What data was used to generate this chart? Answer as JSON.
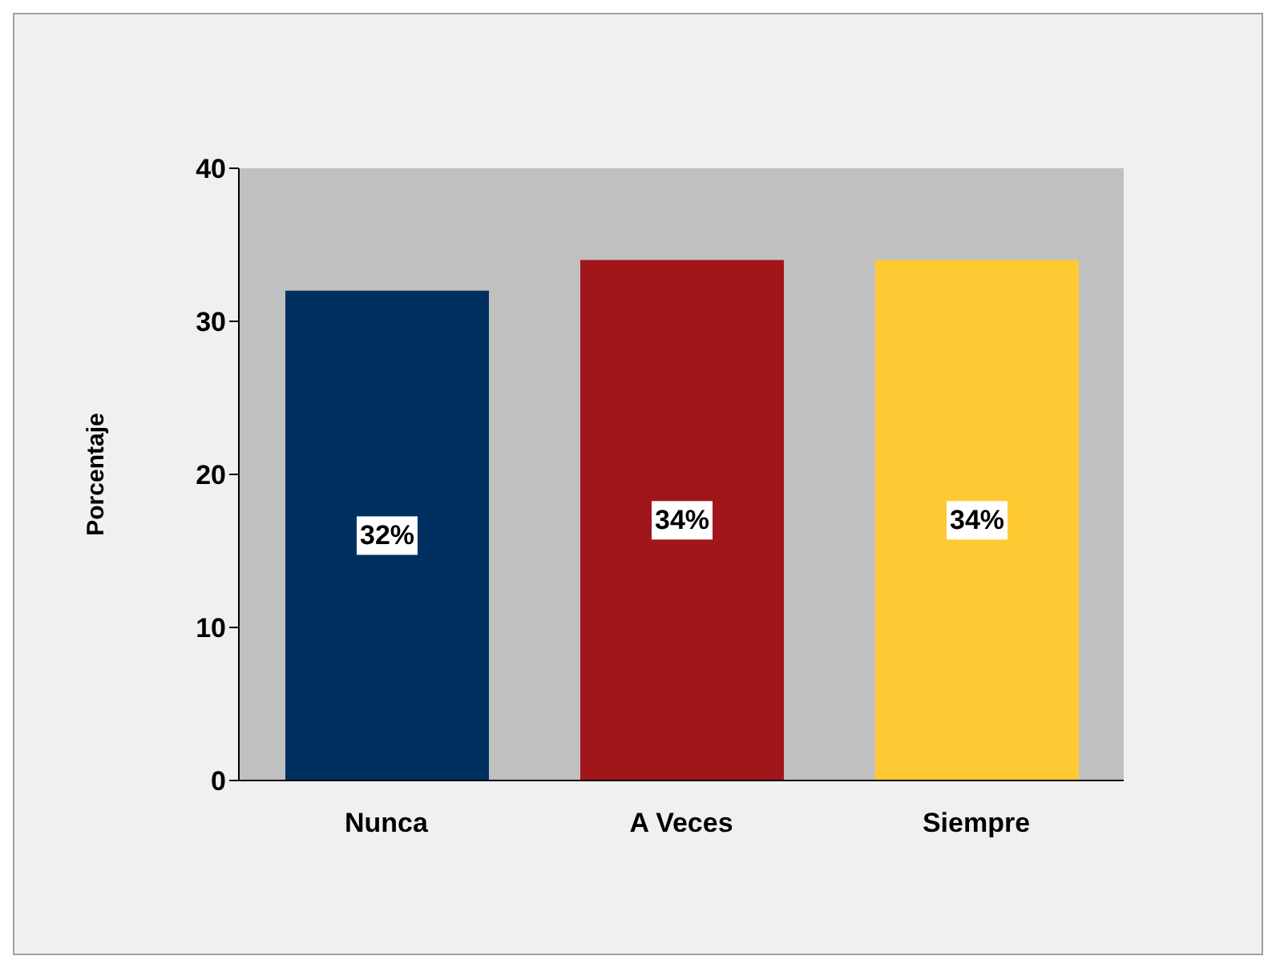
{
  "chart_data": {
    "type": "bar",
    "ylabel": "Porcentaje",
    "categories": [
      "Nunca",
      "A Veces",
      "Siempre"
    ],
    "values": [
      32,
      34,
      34
    ],
    "colors": [
      "#003060",
      "#a0161a",
      "#ffc933"
    ],
    "value_labels": [
      "32%",
      "34%",
      "34%"
    ],
    "ylim": [
      0,
      40
    ],
    "yticks": [
      0,
      10,
      20,
      30,
      40
    ],
    "grid": false,
    "legend": false
  }
}
